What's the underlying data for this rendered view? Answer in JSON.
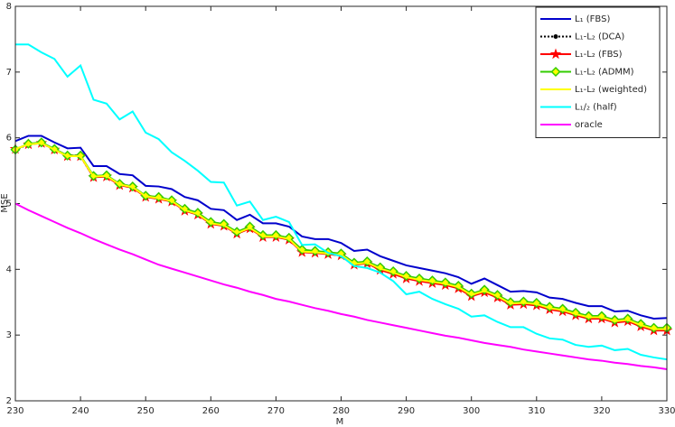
{
  "chart_data": {
    "type": "line",
    "xlabel": "M",
    "ylabel": "MSE",
    "xlim": [
      230,
      330
    ],
    "ylim": [
      2,
      8
    ],
    "xticks": [
      230,
      240,
      250,
      260,
      270,
      280,
      290,
      300,
      310,
      320,
      330
    ],
    "yticks": [
      2,
      3,
      4,
      5,
      6,
      7,
      8
    ],
    "legend": "northeast",
    "x": [
      230,
      232,
      234,
      236,
      238,
      240,
      242,
      244,
      246,
      248,
      250,
      252,
      254,
      256,
      258,
      260,
      262,
      264,
      266,
      268,
      270,
      272,
      274,
      276,
      278,
      280,
      282,
      284,
      286,
      288,
      290,
      292,
      294,
      296,
      298,
      300,
      302,
      304,
      306,
      308,
      310,
      312,
      314,
      316,
      318,
      320,
      322,
      324,
      326,
      328,
      330
    ],
    "series": [
      {
        "name": "L₁ (FBS)",
        "color": "#0000cc",
        "marker": "none",
        "dash": "solid",
        "values": [
          5.95,
          6.03,
          6.03,
          5.93,
          5.84,
          5.85,
          5.57,
          5.57,
          5.45,
          5.43,
          5.27,
          5.26,
          5.22,
          5.1,
          5.05,
          4.92,
          4.9,
          4.75,
          4.83,
          4.7,
          4.7,
          4.65,
          4.5,
          4.46,
          4.46,
          4.4,
          4.28,
          4.3,
          4.2,
          4.13,
          4.06,
          4.02,
          3.98,
          3.94,
          3.88,
          3.78,
          3.86,
          3.76,
          3.66,
          3.67,
          3.65,
          3.57,
          3.55,
          3.49,
          3.44,
          3.44,
          3.36,
          3.37,
          3.3,
          3.25,
          3.26
        ]
      },
      {
        "name": "L₁-L₂ (DCA)",
        "color": "#000000",
        "marker": "dot",
        "dash": "dotted",
        "values": [
          5.82,
          5.9,
          5.92,
          5.82,
          5.72,
          5.72,
          5.4,
          5.42,
          5.28,
          5.25,
          5.1,
          5.08,
          5.03,
          4.9,
          4.84,
          4.7,
          4.67,
          4.55,
          4.63,
          4.5,
          4.5,
          4.46,
          4.27,
          4.26,
          4.24,
          4.22,
          4.08,
          4.1,
          4.0,
          3.94,
          3.87,
          3.83,
          3.8,
          3.77,
          3.72,
          3.6,
          3.66,
          3.58,
          3.47,
          3.48,
          3.46,
          3.4,
          3.37,
          3.31,
          3.26,
          3.26,
          3.2,
          3.22,
          3.14,
          3.08,
          3.08
        ]
      },
      {
        "name": "L₁-L₂ (FBS)",
        "color": "#ff0000",
        "marker": "star",
        "dash": "solid",
        "values": [
          5.83,
          5.9,
          5.92,
          5.82,
          5.72,
          5.72,
          5.4,
          5.41,
          5.28,
          5.24,
          5.1,
          5.07,
          5.03,
          4.89,
          4.83,
          4.69,
          4.66,
          4.54,
          4.62,
          4.49,
          4.49,
          4.45,
          4.26,
          4.25,
          4.23,
          4.21,
          4.07,
          4.09,
          3.99,
          3.93,
          3.86,
          3.82,
          3.79,
          3.76,
          3.71,
          3.59,
          3.65,
          3.57,
          3.46,
          3.47,
          3.45,
          3.39,
          3.36,
          3.3,
          3.25,
          3.25,
          3.19,
          3.21,
          3.13,
          3.07,
          3.07
        ]
      },
      {
        "name": "L₁-L₂ (ADMM)",
        "color": "#33cc00",
        "marker": "diamond",
        "dash": "solid",
        "values": [
          5.82,
          5.91,
          5.93,
          5.83,
          5.73,
          5.73,
          5.42,
          5.43,
          5.3,
          5.26,
          5.12,
          5.1,
          5.05,
          4.92,
          4.86,
          4.72,
          4.69,
          4.57,
          4.65,
          4.52,
          4.52,
          4.48,
          4.3,
          4.28,
          4.26,
          4.24,
          4.1,
          4.12,
          4.03,
          3.97,
          3.9,
          3.86,
          3.83,
          3.8,
          3.75,
          3.63,
          3.69,
          3.61,
          3.5,
          3.51,
          3.49,
          3.43,
          3.4,
          3.34,
          3.29,
          3.29,
          3.23,
          3.25,
          3.17,
          3.11,
          3.11
        ]
      },
      {
        "name": "L₁-L₂ (weighted)",
        "color": "#ffff00",
        "marker": "none",
        "dash": "solid",
        "values": [
          5.83,
          5.9,
          5.92,
          5.82,
          5.72,
          5.72,
          5.41,
          5.42,
          5.29,
          5.25,
          5.11,
          5.08,
          5.04,
          4.9,
          4.84,
          4.7,
          4.67,
          4.55,
          4.63,
          4.5,
          4.5,
          4.46,
          4.27,
          4.26,
          4.24,
          4.22,
          4.08,
          4.1,
          4.01,
          3.95,
          3.88,
          3.84,
          3.81,
          3.78,
          3.73,
          3.61,
          3.67,
          3.59,
          3.48,
          3.49,
          3.47,
          3.41,
          3.38,
          3.32,
          3.27,
          3.27,
          3.21,
          3.23,
          3.15,
          3.09,
          3.09
        ]
      },
      {
        "name": "L₁/₂ (half)",
        "color": "#00ffff",
        "marker": "none",
        "dash": "solid",
        "values": [
          7.42,
          7.42,
          7.3,
          7.2,
          6.93,
          7.1,
          6.58,
          6.52,
          6.28,
          6.4,
          6.08,
          5.98,
          5.78,
          5.65,
          5.5,
          5.33,
          5.32,
          4.97,
          5.03,
          4.75,
          4.8,
          4.72,
          4.37,
          4.38,
          4.25,
          4.2,
          4.05,
          4.02,
          3.95,
          3.82,
          3.62,
          3.66,
          3.55,
          3.47,
          3.4,
          3.28,
          3.3,
          3.2,
          3.12,
          3.12,
          3.02,
          2.95,
          2.93,
          2.85,
          2.82,
          2.84,
          2.77,
          2.79,
          2.7,
          2.66,
          2.63
        ]
      },
      {
        "name": "oracle",
        "color": "#ff00ff",
        "marker": "none",
        "dash": "solid",
        "values": [
          5.0,
          4.9,
          4.81,
          4.72,
          4.63,
          4.55,
          4.46,
          4.38,
          4.3,
          4.23,
          4.15,
          4.07,
          4.01,
          3.95,
          3.89,
          3.83,
          3.77,
          3.72,
          3.66,
          3.61,
          3.55,
          3.51,
          3.46,
          3.41,
          3.37,
          3.32,
          3.28,
          3.23,
          3.19,
          3.15,
          3.11,
          3.07,
          3.03,
          2.99,
          2.96,
          2.92,
          2.88,
          2.85,
          2.82,
          2.78,
          2.75,
          2.72,
          2.69,
          2.66,
          2.63,
          2.61,
          2.58,
          2.56,
          2.53,
          2.51,
          2.48
        ]
      }
    ]
  }
}
